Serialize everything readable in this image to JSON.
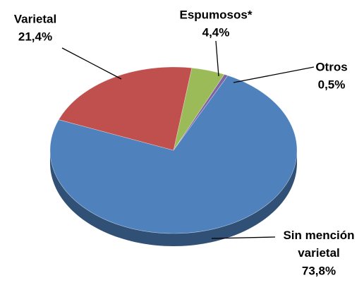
{
  "chart_data": {
    "type": "pie",
    "categories": [
      "Espumosos*",
      "Otros",
      "Sin mención varietal",
      "Varietal"
    ],
    "values": [
      4.4,
      0.5,
      73.8,
      21.4
    ],
    "value_labels": [
      "4,4%",
      "0,5%",
      "73,8%",
      "21,4%"
    ],
    "colors": [
      "#9bbb59",
      "#8064a2",
      "#4f81bd",
      "#c0504d"
    ],
    "three_d": true
  }
}
